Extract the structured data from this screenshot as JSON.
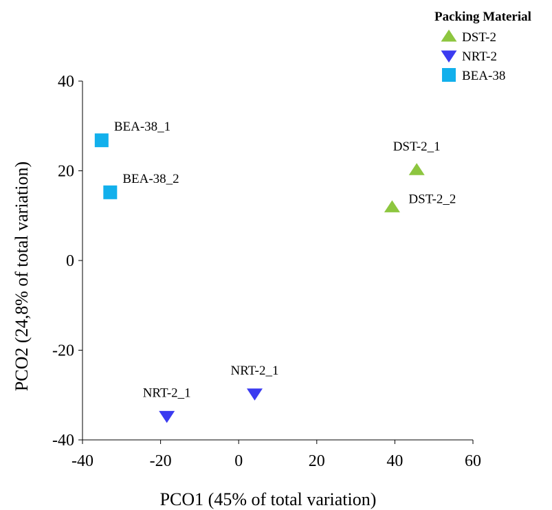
{
  "chart_data": {
    "type": "scatter",
    "title": "",
    "xlabel": "PCO1 (45% of total variation)",
    "ylabel": "PCO2 (24,8% of total variation)",
    "xlim": [
      -40,
      60
    ],
    "ylim": [
      -40,
      40
    ],
    "xticks": [
      -40,
      -20,
      0,
      20,
      40,
      60
    ],
    "yticks": [
      -40,
      -20,
      0,
      20,
      40
    ],
    "xtick_labels": [
      "-40",
      "-20",
      "0",
      "20",
      "40",
      "60"
    ],
    "ytick_labels": [
      "-40",
      "-20",
      "0",
      "20",
      "40"
    ],
    "grid": false,
    "legend": {
      "title": "Packing Material",
      "placement": "top-right"
    },
    "series": [
      {
        "name": "DST-2",
        "marker": "triangle-up",
        "color": "#8dc63f",
        "points": [
          {
            "label": "DST-2_1",
            "x": 45.6,
            "y": 20.2,
            "label_pos": "above"
          },
          {
            "label": "DST-2_2",
            "x": 39.3,
            "y": 11.9,
            "label_pos": "right"
          }
        ]
      },
      {
        "name": "NRT-2",
        "marker": "triangle-down",
        "color": "#3b3bf0",
        "points": [
          {
            "label": "NRT-2_1",
            "x": 4.1,
            "y": -29.7,
            "label_pos": "above"
          },
          {
            "label": "NRT-2_1",
            "x": -18.4,
            "y": -34.7,
            "label_pos": "above"
          }
        ]
      },
      {
        "name": "BEA-38",
        "marker": "square",
        "color": "#12b0ec",
        "points": [
          {
            "label": "BEA-38_1",
            "x": -35.1,
            "y": 26.8,
            "label_pos": "above-right"
          },
          {
            "label": "BEA-38_2",
            "x": -32.9,
            "y": 15.2,
            "label_pos": "above-right"
          }
        ]
      }
    ]
  }
}
